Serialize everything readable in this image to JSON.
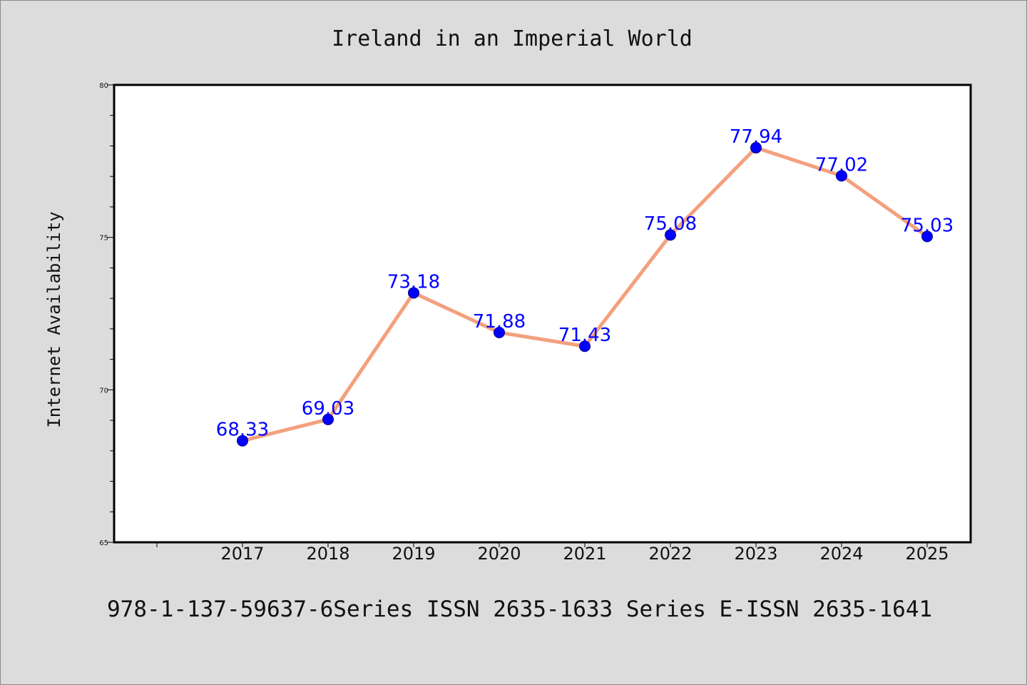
{
  "chart_data": {
    "type": "line",
    "title": "Ireland in an Imperial World",
    "xlabel": "",
    "ylabel": "Internet Availability",
    "categories": [
      "2017",
      "2018",
      "2019",
      "2020",
      "2021",
      "2022",
      "2023",
      "2024",
      "2025"
    ],
    "values": [
      68.33,
      69.03,
      73.18,
      71.88,
      71.43,
      75.08,
      77.94,
      77.02,
      75.03
    ],
    "data_labels": [
      "68.33",
      "69.03",
      "73.18",
      "71.88",
      "71.43",
      "75.08",
      "77.94",
      "77.02",
      "75.03"
    ],
    "ylim": [
      65,
      80
    ],
    "yticks": [
      65,
      70,
      75,
      80
    ],
    "grid": false,
    "legend": "none",
    "line_color": "#f4a07e",
    "marker_color": "#0000ff",
    "label_color": "#0000ff"
  },
  "footer": "978-1-137-59637-6Series ISSN 2635-1633 Series E-ISSN 2635-1641"
}
